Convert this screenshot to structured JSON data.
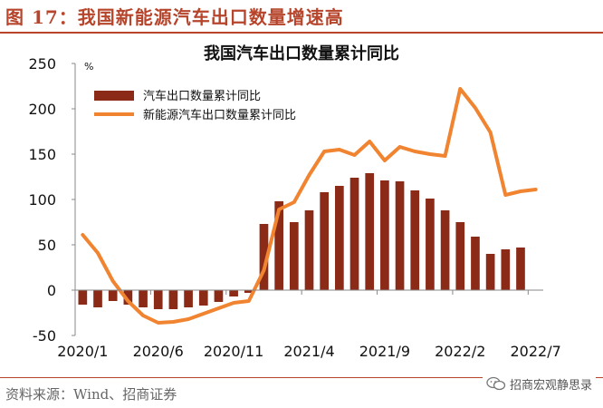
{
  "header": {
    "figure_title": "图 17：我国新能源汽车出口数量增速高"
  },
  "footer": {
    "source": "资料来源：Wind、招商证券",
    "watermark": "招商宏观静思录"
  },
  "icons": {
    "watermark_icon": "wechat-icon"
  },
  "colors": {
    "accent": "#b6452c",
    "bar": "#8b2a16",
    "line": "#f08430"
  },
  "chart_data": {
    "type": "bar",
    "title": "我国汽车出口数量累计同比",
    "yunit": "%",
    "ylim": [
      -50,
      250
    ],
    "yticks": [
      -50,
      0,
      50,
      100,
      150,
      200,
      250
    ],
    "categories": [
      "2020/1",
      "2020/2",
      "2020/3",
      "2020/4",
      "2020/5",
      "2020/6",
      "2020/7",
      "2020/8",
      "2020/9",
      "2020/10",
      "2020/11",
      "2020/12",
      "2021/1",
      "2021/2",
      "2021/3",
      "2021/4",
      "2021/5",
      "2021/6",
      "2021/7",
      "2021/8",
      "2021/9",
      "2021/10",
      "2021/11",
      "2021/12",
      "2022/1",
      "2022/2",
      "2022/3",
      "2022/4",
      "2022/5",
      "2022/6",
      "2022/7"
    ],
    "xtick_labels": [
      "2020/1",
      "2020/6",
      "2020/11",
      "2021/4",
      "2021/9",
      "2022/2",
      "2022/7"
    ],
    "xtick_indices": [
      0,
      5,
      10,
      15,
      20,
      25,
      30
    ],
    "series": [
      {
        "name": "汽车出口数量累计同比",
        "type": "bar",
        "values": [
          -16,
          -19,
          -12,
          -16,
          -19,
          -21,
          -21,
          -19,
          -17,
          -13,
          -7,
          -3,
          73,
          98,
          75,
          88,
          108,
          115,
          124,
          129,
          121,
          120,
          110,
          101,
          88,
          75,
          59,
          40,
          45,
          47,
          null
        ]
      },
      {
        "name": "新能源汽车出口数量累计同比",
        "type": "line",
        "values": [
          61,
          41,
          10,
          -12,
          -28,
          -36,
          -35,
          -32,
          -26,
          -20,
          -14,
          -12,
          22,
          89,
          97,
          127,
          153,
          155,
          149,
          164,
          143,
          158,
          153,
          150,
          148,
          222,
          201,
          174,
          105,
          109,
          111
        ]
      }
    ]
  }
}
